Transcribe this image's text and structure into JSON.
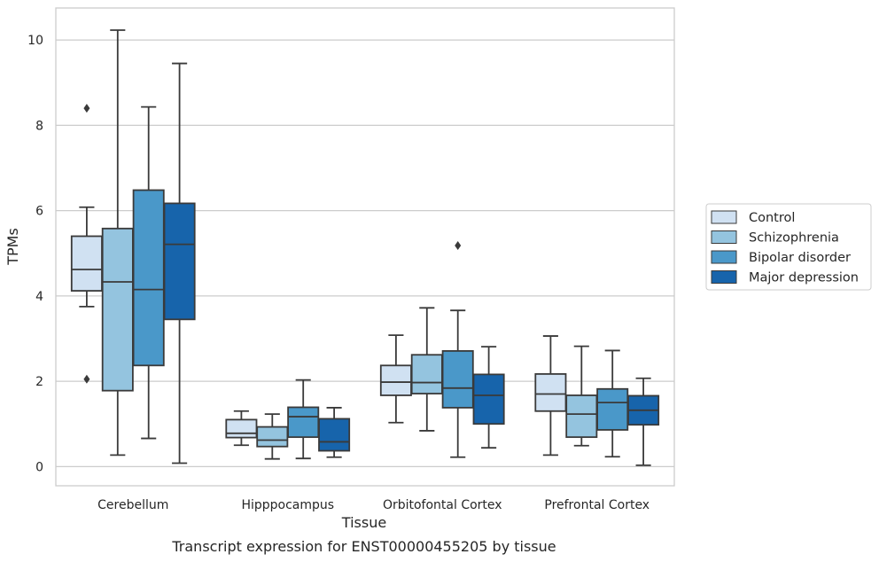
{
  "chart_data": {
    "type": "box",
    "title": "Transcript expression for ENST00000455205 by tissue",
    "xlabel": "Tissue",
    "ylabel": "TPMs",
    "ylim": [
      -0.45,
      10.75
    ],
    "yticks": [
      0,
      2,
      4,
      6,
      8,
      10
    ],
    "grid": "horizontal",
    "legend_position": "right",
    "categories": [
      "Cerebellum",
      "Hipppocampus",
      "Orbitofontal Cortex",
      "Prefrontal Cortex"
    ],
    "series": [
      {
        "name": "Control",
        "color": "#d0e1f2",
        "boxes": [
          {
            "whislo": 3.75,
            "q1": 4.12,
            "med": 4.62,
            "q3": 5.4,
            "whishi": 6.08,
            "fliers": [
              8.4,
              2.05
            ]
          },
          {
            "whislo": 0.5,
            "q1": 0.68,
            "med": 0.78,
            "q3": 1.1,
            "whishi": 1.3,
            "fliers": []
          },
          {
            "whislo": 1.03,
            "q1": 1.67,
            "med": 1.98,
            "q3": 2.37,
            "whishi": 3.08,
            "fliers": []
          },
          {
            "whislo": 0.27,
            "q1": 1.3,
            "med": 1.7,
            "q3": 2.17,
            "whishi": 3.06,
            "fliers": []
          }
        ]
      },
      {
        "name": "Schizophrenia",
        "color": "#94c4df",
        "boxes": [
          {
            "whislo": 0.27,
            "q1": 1.78,
            "med": 4.33,
            "q3": 5.58,
            "whishi": 10.23,
            "fliers": []
          },
          {
            "whislo": 0.18,
            "q1": 0.47,
            "med": 0.62,
            "q3": 0.93,
            "whishi": 1.23,
            "fliers": []
          },
          {
            "whislo": 0.84,
            "q1": 1.71,
            "med": 1.97,
            "q3": 2.62,
            "whishi": 3.72,
            "fliers": []
          },
          {
            "whislo": 0.49,
            "q1": 0.69,
            "med": 1.23,
            "q3": 1.67,
            "whishi": 2.82,
            "fliers": []
          }
        ]
      },
      {
        "name": "Bipolar disorder",
        "color": "#4a98c9",
        "boxes": [
          {
            "whislo": 0.66,
            "q1": 2.37,
            "med": 4.15,
            "q3": 6.48,
            "whishi": 8.43,
            "fliers": []
          },
          {
            "whislo": 0.19,
            "q1": 0.69,
            "med": 1.17,
            "q3": 1.39,
            "whishi": 2.03,
            "fliers": []
          },
          {
            "whislo": 0.22,
            "q1": 1.38,
            "med": 1.84,
            "q3": 2.71,
            "whishi": 3.66,
            "fliers": [
              5.18
            ]
          },
          {
            "whislo": 0.23,
            "q1": 0.86,
            "med": 1.5,
            "q3": 1.82,
            "whishi": 2.72,
            "fliers": []
          }
        ]
      },
      {
        "name": "Major depression",
        "color": "#1764ab",
        "boxes": [
          {
            "whislo": 0.08,
            "q1": 3.45,
            "med": 5.21,
            "q3": 6.17,
            "whishi": 9.45,
            "fliers": []
          },
          {
            "whislo": 0.22,
            "q1": 0.37,
            "med": 0.58,
            "q3": 1.12,
            "whishi": 1.38,
            "fliers": []
          },
          {
            "whislo": 0.44,
            "q1": 1.0,
            "med": 1.67,
            "q3": 2.16,
            "whishi": 2.81,
            "fliers": []
          },
          {
            "whislo": 0.03,
            "q1": 0.98,
            "med": 1.32,
            "q3": 1.66,
            "whishi": 2.07,
            "fliers": []
          }
        ]
      }
    ]
  }
}
